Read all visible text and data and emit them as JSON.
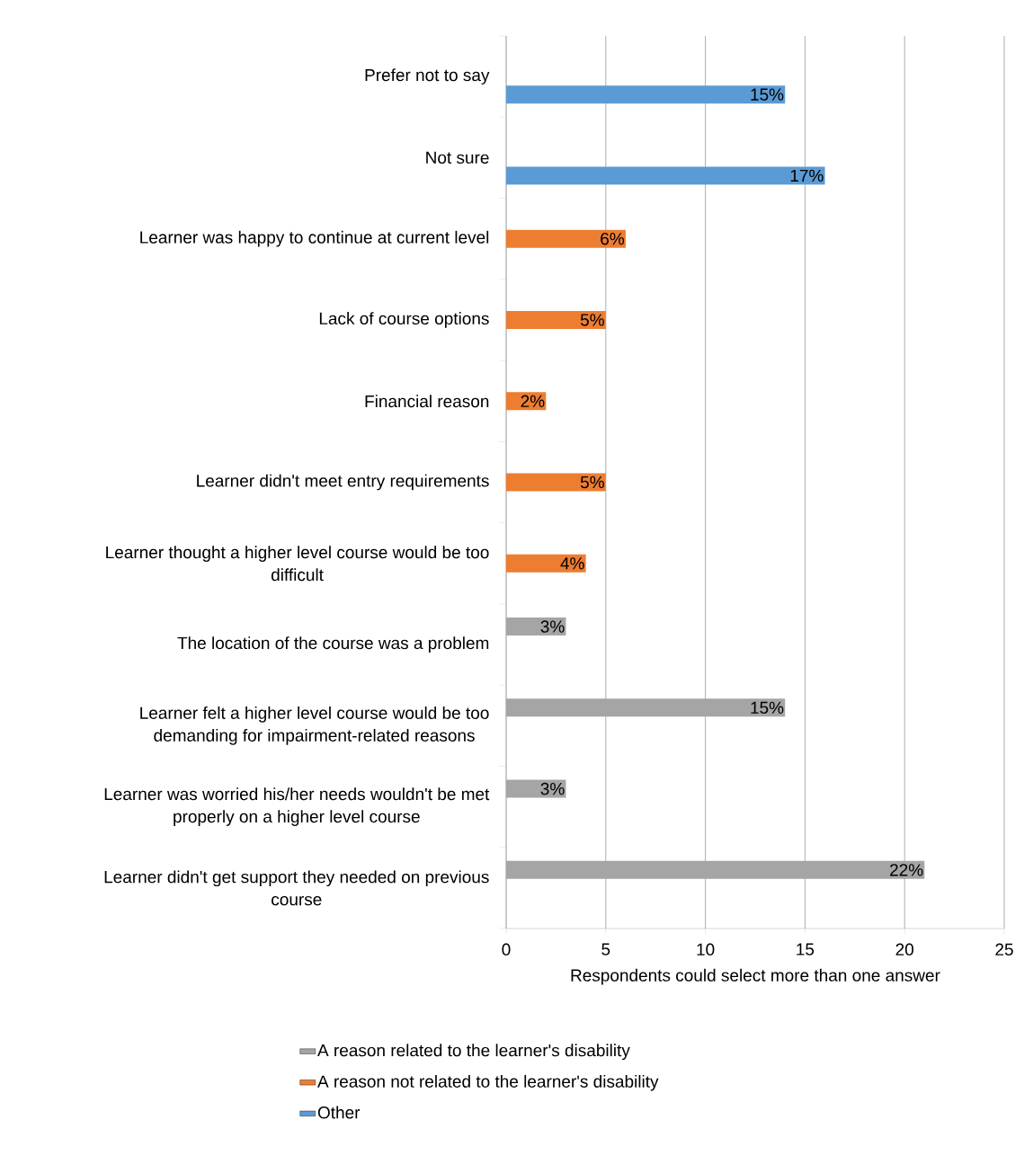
{
  "chart_data": {
    "type": "bar",
    "orientation": "horizontal",
    "xlabel": "Respondents could select more than one answer",
    "categories": [
      "Prefer not to say",
      "Not sure",
      "Learner was happy to continue at current level",
      "Lack of course options",
      "Financial reason",
      "Learner didn't meet entry requirements",
      "Learner thought a higher level course would be too difficult",
      "The location of the course was a problem",
      "Learner felt a higher level course would be too demanding for impairment-related reasons",
      "Learner was worried his/her needs wouldn't be met properly on a higher level course",
      "Learner didn't get support they needed on previous course"
    ],
    "series": [
      {
        "name": "A reason related to the learner's disability",
        "color": "#a5a5a5",
        "values": [
          null,
          null,
          null,
          null,
          null,
          null,
          null,
          3,
          14,
          3,
          21
        ]
      },
      {
        "name": "A reason not related to the learner's disability",
        "color": "#ed7d31",
        "values": [
          null,
          null,
          6,
          5,
          2,
          5,
          4,
          null,
          null,
          null,
          null
        ]
      },
      {
        "name": "Other",
        "color": "#5b9bd5",
        "values": [
          14,
          16,
          null,
          null,
          null,
          null,
          null,
          null,
          null,
          null,
          null
        ]
      }
    ],
    "annotations": [
      "15%",
      "17%",
      "6%",
      "5%",
      "2%",
      "5%",
      "4%",
      "3%",
      "15%",
      "3%",
      "22%"
    ],
    "xlim": [
      0,
      25
    ],
    "xticks": [
      0,
      5,
      10,
      15,
      20,
      25
    ],
    "grid": "x",
    "legend": "bottom"
  }
}
